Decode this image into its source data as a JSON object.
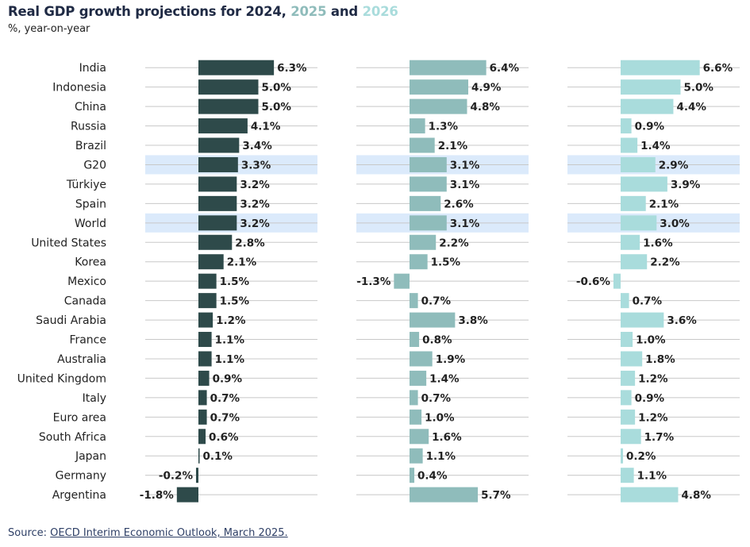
{
  "title": {
    "prefix": "Real GDP growth projections for 2024, ",
    "mid": "2025",
    "and": " and ",
    "end": "2026"
  },
  "subtitle": "%, year-on-year",
  "source": {
    "prefix": "Source: ",
    "link": "OECD Interim Economic Outlook, March 2025."
  },
  "colors": {
    "title": "#1f2a44",
    "s2024": "#2e4a4a",
    "s2025": "#8fbcbb",
    "s2026": "#a9dcdc",
    "highlight": "#dbeafb",
    "gridline": "#c8c8c8",
    "source_link": "#2e3f66"
  },
  "chart_data": {
    "type": "bar",
    "orientation": "horizontal",
    "categories": [
      "India",
      "Indonesia",
      "China",
      "Russia",
      "Brazil",
      "G20",
      "Türkiye",
      "Spain",
      "World",
      "United States",
      "Korea",
      "Mexico",
      "Canada",
      "Saudi Arabia",
      "France",
      "Australia",
      "United Kingdom",
      "Italy",
      "Euro area",
      "South Africa",
      "Japan",
      "Germany",
      "Argentina"
    ],
    "highlighted": [
      "G20",
      "World"
    ],
    "series": [
      {
        "name": "2024",
        "values": [
          6.3,
          5.0,
          5.0,
          4.1,
          3.4,
          3.3,
          3.2,
          3.2,
          3.2,
          2.8,
          2.1,
          1.5,
          1.5,
          1.2,
          1.1,
          1.1,
          0.9,
          0.7,
          0.7,
          0.6,
          0.1,
          -0.2,
          -1.8
        ],
        "labels": [
          "6.3%",
          "5.0%",
          "5.0%",
          "4.1%",
          "3.4%",
          "3.3%",
          "3.2%",
          "3.2%",
          "3.2%",
          "2.8%",
          "2.1%",
          "1.5%",
          "1.5%",
          "1.2%",
          "1.1%",
          "1.1%",
          "0.9%",
          "0.7%",
          "0.7%",
          "0.6%",
          "0.1%",
          "-0.2%",
          "-1.8%"
        ]
      },
      {
        "name": "2025",
        "values": [
          6.4,
          4.9,
          4.8,
          1.3,
          2.1,
          3.1,
          3.1,
          2.6,
          3.1,
          2.2,
          1.5,
          -1.3,
          0.7,
          3.8,
          0.8,
          1.9,
          1.4,
          0.7,
          1.0,
          1.6,
          1.1,
          0.4,
          5.7
        ],
        "labels": [
          "6.4%",
          "4.9%",
          "4.8%",
          "1.3%",
          "2.1%",
          "3.1%",
          "3.1%",
          "2.6%",
          "3.1%",
          "2.2%",
          "1.5%",
          "-1.3%",
          "0.7%",
          "3.8%",
          "0.8%",
          "1.9%",
          "1.4%",
          "0.7%",
          "1.0%",
          "1.6%",
          "1.1%",
          "0.4%",
          "5.7%"
        ]
      },
      {
        "name": "2026",
        "values": [
          6.6,
          5.0,
          4.4,
          0.9,
          1.4,
          2.9,
          3.9,
          2.1,
          3.0,
          1.6,
          2.2,
          -0.6,
          0.7,
          3.6,
          1.0,
          1.8,
          1.2,
          0.9,
          1.2,
          1.7,
          0.2,
          1.1,
          4.8
        ],
        "labels": [
          "6.6%",
          "5.0%",
          "4.4%",
          "0.9%",
          "1.4%",
          "2.9%",
          "3.9%",
          "2.1%",
          "3.0%",
          "1.6%",
          "2.2%",
          "-0.6%",
          "0.7%",
          "3.6%",
          "1.0%",
          "1.8%",
          "1.2%",
          "0.9%",
          "1.2%",
          "1.7%",
          "0.2%",
          "1.1%",
          "4.8%"
        ]
      }
    ]
  }
}
